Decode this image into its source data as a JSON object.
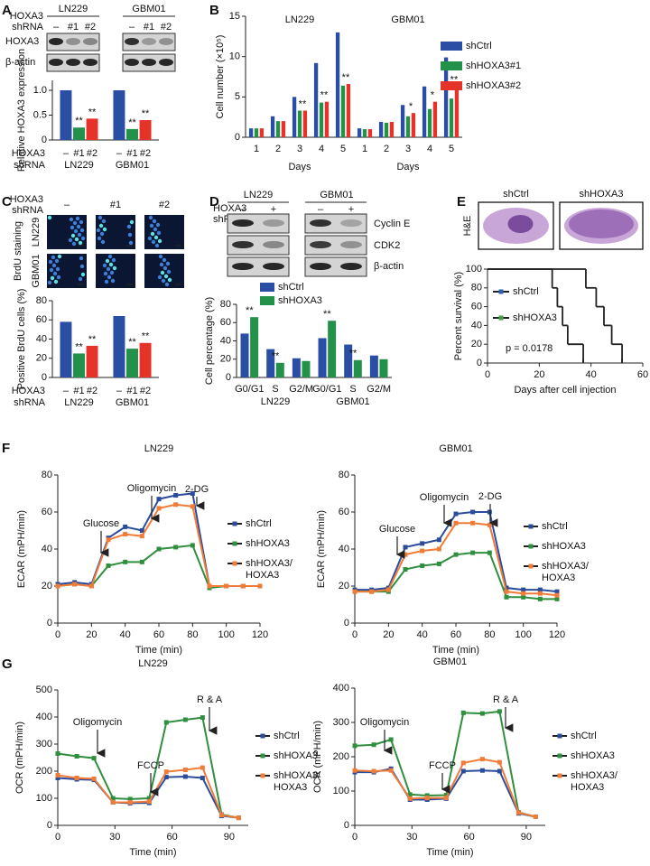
{
  "panel_labels": [
    "A",
    "B",
    "C",
    "D",
    "E",
    "F",
    "G"
  ],
  "blot_A": {
    "cell_lines": [
      "LN229",
      "GBM01"
    ],
    "row_labels": [
      "HOXA3",
      "shRNA"
    ],
    "lanes": [
      "–",
      "#1",
      "#2"
    ],
    "bands": [
      "HOXA3",
      "β-actin"
    ]
  },
  "images_C": {
    "row_labels": [
      "HOXA3",
      "shRNA"
    ],
    "columns": [
      "–",
      "#1",
      "#2"
    ],
    "stain": "BrdU staining",
    "rows": [
      "LN229",
      "GBM01"
    ]
  },
  "blot_D": {
    "row_labels": [
      "HOXA3",
      "shRNA"
    ],
    "cell_lines": [
      "LN229",
      "GBM01"
    ],
    "lanes": [
      "–",
      "+"
    ],
    "bands": [
      "Cyclin E",
      "CDK2",
      "β-actin"
    ]
  },
  "images_E": {
    "columns": [
      "shCtrl",
      "shHOXA3"
    ],
    "stain": "H&E"
  },
  "chart_data": [
    {
      "type": "bar",
      "y_label": "Relative HOXA3 expression",
      "ylim": [
        0,
        1.2
      ],
      "yticks": [
        0,
        0.5,
        {
          "value": 1,
          "label": "1.0"
        }
      ],
      "categories": [
        "LN229",
        "GBM01"
      ],
      "row_labels": [
        "HOXA3",
        "shRNA"
      ],
      "bar_labels": [
        "–",
        "#1",
        "#2"
      ],
      "series": [
        {
          "color": "#2a4ea3",
          "values": [
            1.0,
            1.0
          ]
        },
        {
          "color": "#23914a",
          "values": [
            0.25,
            0.22
          ],
          "significance": [
            "**",
            "**"
          ]
        },
        {
          "color": "#e5332a",
          "values": [
            0.43,
            0.4
          ],
          "significance": [
            "**",
            "**"
          ]
        }
      ]
    },
    {
      "type": "bar",
      "y_label": "Cell number (×10⁵)",
      "x_label": "Days",
      "ylim": [
        0,
        15
      ],
      "yticks": [
        0,
        5,
        10,
        15
      ],
      "categories": [
        "1",
        "2",
        "3",
        "4",
        "5",
        "1",
        "2",
        "3",
        "4",
        "5"
      ],
      "group_labels": [
        "LN229",
        "GBM01"
      ],
      "legend": "right",
      "series": [
        {
          "name": "shCtrl",
          "color": "#2a4ea3",
          "values": [
            1.1,
            2.6,
            5.0,
            9.2,
            13.0,
            1.1,
            1.9,
            4.0,
            6.3,
            9.9
          ]
        },
        {
          "name": "shHOXA3#1",
          "color": "#23914a",
          "values": [
            1.1,
            2.0,
            3.3,
            4.3,
            6.4,
            1.0,
            1.8,
            2.6,
            3.5,
            4.8
          ]
        },
        {
          "name": "shHOXA3#2",
          "color": "#e5332a",
          "values": [
            1.1,
            2.0,
            3.3,
            4.4,
            6.6,
            1.0,
            1.9,
            3.0,
            4.4,
            6.3
          ],
          "significance": [
            null,
            null,
            "**",
            "**",
            "**",
            null,
            null,
            "*",
            "*",
            "**"
          ]
        }
      ]
    },
    {
      "type": "bar",
      "y_label": "Positive BrdU cells (%)",
      "ylim": [
        0,
        80
      ],
      "yticks": [
        0,
        20,
        40,
        60,
        80
      ],
      "categories": [
        "LN229",
        "GBM01"
      ],
      "row_labels": [
        "HOXA3",
        "shRNA"
      ],
      "bar_labels": [
        "–",
        "#1",
        "#2"
      ],
      "series": [
        {
          "color": "#2a4ea3",
          "values": [
            58,
            64
          ]
        },
        {
          "color": "#23914a",
          "values": [
            25,
            30
          ],
          "significance": [
            "**",
            "**"
          ]
        },
        {
          "color": "#e5332a",
          "values": [
            33,
            36
          ],
          "significance": [
            "**",
            "**"
          ]
        }
      ]
    },
    {
      "type": "bar",
      "y_label": "Cell percentage (%)",
      "ylim": [
        0,
        80
      ],
      "yticks": [
        0,
        20,
        40,
        60,
        80
      ],
      "categories": [
        "G0/G1",
        "S",
        "G2/M",
        "G0/G1",
        "S",
        "G2/M"
      ],
      "group_labels": [
        "LN229",
        "GBM01"
      ],
      "legend": "upper",
      "series": [
        {
          "name": "shCtrl",
          "color": "#2a4ea3",
          "values": [
            48,
            31,
            21,
            43,
            36,
            24
          ]
        },
        {
          "name": "shHOXA3",
          "color": "#23914a",
          "values": [
            66,
            16,
            18,
            62,
            19,
            20
          ],
          "significance": [
            "**",
            "**",
            null,
            "**",
            "**",
            null
          ]
        }
      ]
    },
    {
      "type": "line",
      "step": true,
      "y_label": "Percent survival (%)",
      "x_label": "Days after cell injection",
      "xlim": [
        0,
        60
      ],
      "xticks": [
        0,
        20,
        40,
        60
      ],
      "ylim": [
        0,
        100
      ],
      "yticks": [
        0,
        20,
        40,
        60,
        80,
        100
      ],
      "annotation": "p = 0.0178",
      "legend": "left",
      "series": [
        {
          "name": "shCtrl",
          "color": "#2d5fae",
          "x": [
            0,
            25,
            27,
            29,
            31,
            37
          ],
          "values": [
            100,
            80,
            60,
            40,
            20,
            0
          ]
        },
        {
          "name": "shHOXA3",
          "color": "#3aa048",
          "x": [
            0,
            38,
            42,
            45,
            48,
            52
          ],
          "values": [
            100,
            80,
            60,
            40,
            20,
            0
          ]
        }
      ]
    },
    {
      "type": "line",
      "title": "LN229",
      "y_label": "ECAR (mPH/min)",
      "x_label": "Time (min)",
      "x": [
        0,
        10,
        20,
        30,
        40,
        50,
        60,
        70,
        80,
        90,
        100,
        110,
        120
      ],
      "xlim": [
        0,
        120
      ],
      "xticks": [
        0,
        20,
        40,
        60,
        80,
        100,
        120
      ],
      "ylim": [
        0,
        80
      ],
      "yticks": [
        0,
        20,
        40,
        60,
        80
      ],
      "annotations": [
        "Glucose",
        "Oligomycin",
        "2-DG"
      ],
      "legend": "right",
      "series": [
        {
          "name": "shCtrl",
          "color": "#2b4c9b",
          "values": [
            21,
            22,
            21,
            46,
            52,
            50,
            67,
            69,
            70,
            20,
            20,
            20,
            20
          ]
        },
        {
          "name": "shHOXA3",
          "color": "#2f8f3e",
          "values": [
            20,
            21,
            20,
            31,
            33,
            33,
            40,
            41,
            42,
            19,
            20,
            20,
            20
          ]
        },
        {
          "name": "shHOXA3/ HOXA3",
          "color": "#f07c3a",
          "values": [
            20,
            21,
            20,
            45,
            48,
            47,
            62,
            64,
            63,
            20,
            20,
            20,
            20
          ]
        }
      ]
    },
    {
      "type": "line",
      "title": "GBM01",
      "y_label": "ECAR (mPH/min)",
      "x_label": "Time (min)",
      "x": [
        0,
        10,
        20,
        30,
        40,
        50,
        60,
        70,
        80,
        90,
        100,
        110,
        120
      ],
      "xlim": [
        0,
        120
      ],
      "xticks": [
        0,
        20,
        40,
        60,
        80,
        100,
        120
      ],
      "ylim": [
        0,
        80
      ],
      "yticks": [
        0,
        20,
        40,
        60,
        80
      ],
      "annotations": [
        "Glucose",
        "Oligomycin",
        "2-DG"
      ],
      "legend": "right",
      "series": [
        {
          "name": "shCtrl",
          "color": "#2b4c9b",
          "values": [
            18,
            18,
            19,
            41,
            43,
            45,
            59,
            60,
            60,
            19,
            18,
            18,
            17
          ]
        },
        {
          "name": "shHOXA3",
          "color": "#2f8f3e",
          "values": [
            17,
            17,
            17,
            29,
            31,
            32,
            37,
            38,
            38,
            14,
            14,
            13,
            13
          ]
        },
        {
          "name": "shHOXA3/ HOXA3",
          "color": "#f07c3a",
          "values": [
            17,
            17,
            18,
            37,
            39,
            40,
            54,
            54,
            53,
            17,
            16,
            16,
            15
          ]
        }
      ]
    },
    {
      "type": "line",
      "title": "LN229",
      "y_label": "OCR (mPH/min)",
      "x_label": "Time (min)",
      "x": [
        0,
        10,
        19,
        29,
        38,
        48,
        57,
        67,
        76,
        86,
        95
      ],
      "xlim": [
        0,
        100
      ],
      "xticks": [
        0,
        30,
        60,
        90
      ],
      "ylim": [
        0,
        500
      ],
      "yticks": [
        0,
        100,
        200,
        300,
        400,
        500
      ],
      "annotations": [
        "Oligomycin",
        "FCCP",
        "R & A"
      ],
      "legend": "right",
      "series": [
        {
          "name": "shCtrl",
          "color": "#2b4c9b",
          "values": [
            175,
            170,
            168,
            85,
            82,
            83,
            178,
            180,
            175,
            35,
            28
          ]
        },
        {
          "name": "shHOXA3",
          "color": "#2f8f3e",
          "values": [
            265,
            255,
            248,
            100,
            97,
            100,
            380,
            390,
            398,
            40,
            28
          ]
        },
        {
          "name": "shHOXA3/ HOXA3",
          "color": "#f07c3a",
          "values": [
            185,
            175,
            172,
            85,
            85,
            88,
            198,
            205,
            213,
            38,
            28
          ]
        }
      ]
    },
    {
      "type": "line",
      "title": "GBM01",
      "y_label": "OCR (mPH/min)",
      "x_label": "Time (min)",
      "x": [
        0,
        10,
        19,
        29,
        38,
        48,
        57,
        67,
        76,
        86,
        95
      ],
      "xlim": [
        0,
        100
      ],
      "xticks": [
        0,
        30,
        60,
        90
      ],
      "ylim": [
        0,
        400
      ],
      "yticks": [
        0,
        100,
        200,
        300,
        400
      ],
      "annotations": [
        "Oligomycin",
        "FCCP",
        "R & A"
      ],
      "legend": "right",
      "series": [
        {
          "name": "shCtrl",
          "color": "#2b4c9b",
          "values": [
            155,
            155,
            165,
            75,
            75,
            78,
            158,
            160,
            158,
            35,
            25
          ]
        },
        {
          "name": "shHOXA3",
          "color": "#2f8f3e",
          "values": [
            232,
            235,
            250,
            90,
            87,
            88,
            328,
            326,
            332,
            38,
            25
          ]
        },
        {
          "name": "shHOXA3/ HOXA3",
          "color": "#f07c3a",
          "values": [
            160,
            158,
            160,
            78,
            80,
            80,
            182,
            193,
            184,
            37,
            25
          ]
        }
      ]
    }
  ]
}
